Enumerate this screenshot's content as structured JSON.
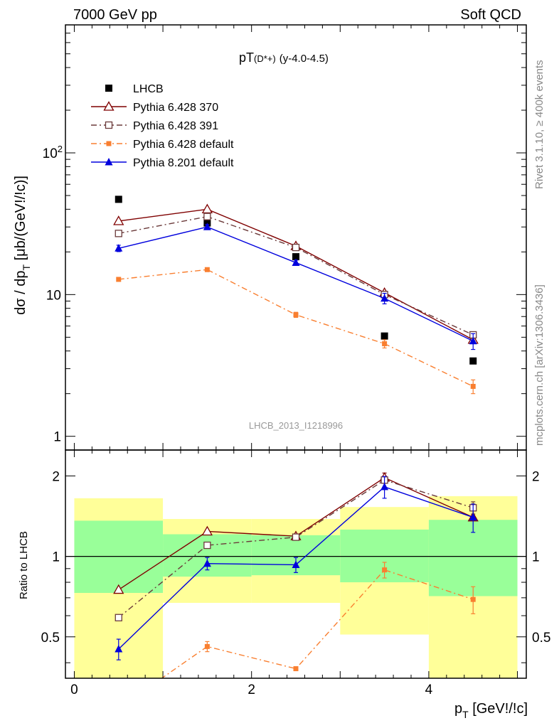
{
  "header": {
    "left": "7000 GeV pp",
    "right": "Soft QCD"
  },
  "side_labels": {
    "rivet": "Rivet 3.1.10, ≥ 400k events",
    "mcplots": "mcplots.cern.ch [arXiv:1306.3436]"
  },
  "chart_data": [
    {
      "type": "line",
      "title_main": "pT",
      "title_sub": "(D*+)",
      "title_range": "(y-4.0-4.5)",
      "watermark": "LHCB_2013_I1218996",
      "ylabel": "dσ / dp",
      "ylabel_sub": "T",
      "ylabel_tail": " [μb/(GeV!/!c)]",
      "yscale": "log",
      "ylim": [
        0.8,
        800
      ],
      "xlim": [
        -0.1,
        5.1
      ],
      "y_tick_labels": [
        {
          "v": 1,
          "text": "1"
        },
        {
          "v": 10,
          "text": "10"
        },
        {
          "v": 100,
          "text": "10",
          "sup": "2"
        }
      ],
      "legend_position": "top-left",
      "series": [
        {
          "name": "LHCB",
          "color": "#000000",
          "marker": "filled-square",
          "line": "none",
          "x": [
            0.5,
            1.5,
            2.5,
            3.5,
            4.5
          ],
          "y": [
            47,
            32,
            18.5,
            5.1,
            3.4
          ],
          "err": [
            0,
            0,
            0,
            0,
            0
          ]
        },
        {
          "name": "Pythia 6.428 370",
          "color": "#7f0000",
          "marker": "open-triangle",
          "line": "solid",
          "x": [
            0.5,
            1.5,
            2.5,
            3.5,
            4.5
          ],
          "y": [
            33,
            40,
            22,
            10.3,
            4.8
          ],
          "err": [
            0,
            0,
            0,
            0,
            0
          ]
        },
        {
          "name": "Pythia 6.428 391",
          "color": "#6b3a3a",
          "marker": "open-square",
          "line": "dashdot",
          "x": [
            0.5,
            1.5,
            2.5,
            3.5,
            4.5
          ],
          "y": [
            27,
            35.5,
            21.5,
            10,
            5.2
          ],
          "err": [
            0,
            0,
            0,
            0,
            0
          ]
        },
        {
          "name": "Pythia 6.428 default",
          "color": "#f97f30",
          "marker": "small-filled-square",
          "line": "dashdot",
          "x": [
            0.5,
            1.5,
            2.5,
            3.5,
            4.5
          ],
          "y": [
            12.8,
            15,
            7.2,
            4.5,
            2.25
          ],
          "err": [
            0,
            0,
            0.3,
            0.3,
            0.25
          ]
        },
        {
          "name": "Pythia 8.201 default",
          "color": "#0000dd",
          "marker": "filled-triangle",
          "line": "solid",
          "x": [
            0.5,
            1.5,
            2.5,
            3.5,
            4.5
          ],
          "y": [
            21.2,
            30,
            16.8,
            9.4,
            4.7
          ],
          "err": [
            1.1,
            1.2,
            0.7,
            0.8,
            0.6
          ]
        }
      ]
    },
    {
      "type": "line",
      "ylabel": "Ratio to LHCB",
      "xlabel": "p",
      "xlabel_sub": "T",
      "xlabel_tail": " [GeV!/!c]",
      "yscale": "log",
      "ylim": [
        0.35,
        2.5
      ],
      "xlim": [
        -0.1,
        5.1
      ],
      "x_tick_labels": [
        {
          "v": 0,
          "text": "0"
        },
        {
          "v": 2,
          "text": "2"
        },
        {
          "v": 4,
          "text": "4"
        }
      ],
      "y_tick_labels": [
        {
          "v": 0.5,
          "text": "0.5"
        },
        {
          "v": 1,
          "text": "1"
        },
        {
          "v": 2,
          "text": "2"
        }
      ],
      "reference_line": 1,
      "bands": {
        "inner_color": "#99ff99",
        "outer_color": "#ffff99",
        "bins": [
          {
            "x0": 0,
            "x1": 1,
            "inner": [
              0.73,
              1.36
            ],
            "outer": [
              0.3,
              1.65
            ]
          },
          {
            "x0": 1,
            "x1": 2,
            "inner": [
              0.84,
              1.21
            ],
            "outer": [
              0.67,
              1.38
            ]
          },
          {
            "x0": 2,
            "x1": 3,
            "inner": [
              0.85,
              1.2
            ],
            "outer": [
              0.67,
              1.38
            ]
          },
          {
            "x0": 3,
            "x1": 4,
            "inner": [
              0.8,
              1.26
            ],
            "outer": [
              0.51,
              1.53
            ]
          },
          {
            "x0": 4,
            "x1": 5,
            "inner": [
              0.71,
              1.37
            ],
            "outer": [
              0.3,
              1.68
            ]
          }
        ]
      },
      "series": [
        {
          "name": "Pythia 6.428 370",
          "color": "#7f0000",
          "marker": "open-triangle",
          "line": "solid",
          "x": [
            0.5,
            1.5,
            2.5,
            3.5,
            4.5
          ],
          "y": [
            0.75,
            1.24,
            1.19,
            1.97,
            1.4
          ],
          "err": [
            0,
            0,
            0,
            0.08,
            0
          ]
        },
        {
          "name": "Pythia 6.428 391",
          "color": "#6b3a3a",
          "marker": "open-square",
          "line": "dashdot",
          "x": [
            0.5,
            1.5,
            2.5,
            3.5,
            4.5
          ],
          "y": [
            0.59,
            1.1,
            1.18,
            1.93,
            1.52
          ],
          "err": [
            0,
            0,
            0,
            0,
            0.08
          ]
        },
        {
          "name": "Pythia 6.428 default",
          "color": "#f97f30",
          "marker": "small-filled-square",
          "line": "dashdot",
          "x": [
            0.5,
            1.5,
            2.5,
            3.5,
            4.5
          ],
          "y": [
            0.27,
            0.46,
            0.38,
            0.89,
            0.69
          ],
          "err": [
            0,
            0.02,
            0,
            0.06,
            0.08
          ]
        },
        {
          "name": "Pythia 8.201 default",
          "color": "#0000dd",
          "marker": "filled-triangle",
          "line": "solid",
          "x": [
            0.5,
            1.5,
            2.5,
            3.5,
            4.5
          ],
          "y": [
            0.45,
            0.94,
            0.93,
            1.82,
            1.4
          ],
          "err": [
            0.04,
            0.05,
            0.06,
            0.17,
            0.17
          ]
        }
      ]
    }
  ]
}
